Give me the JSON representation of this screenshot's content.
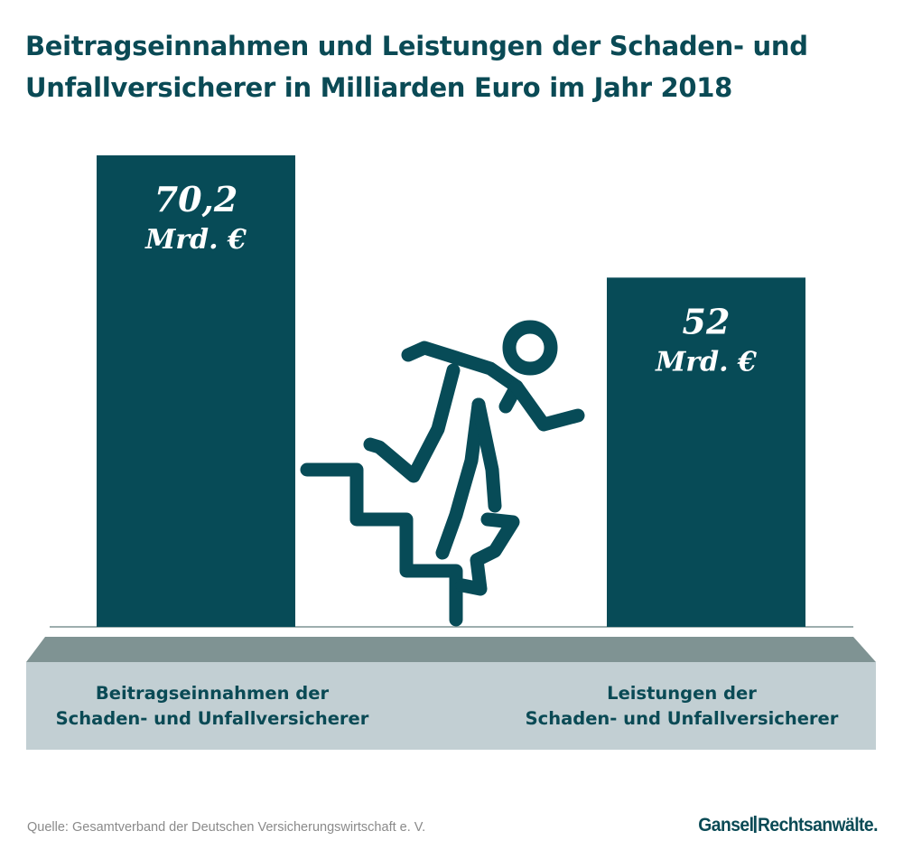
{
  "title_line1": "Beitragseinnahmen und Leistungen der Schaden- und",
  "title_line2": "Unfallversicherer in Milliarden Euro im Jahr 2018",
  "chart_data": {
    "type": "bar",
    "title": "Beitragseinnahmen und Leistungen der Schaden- und Unfallversicherer in Milliarden Euro im Jahr 2018",
    "categories": [
      "Beitragseinnahmen der Schaden- und Unfallversicherer",
      "Leistungen der Schaden- und Unfallversicherer"
    ],
    "values": [
      70.2,
      52
    ],
    "value_labels": [
      "70,2",
      "52"
    ],
    "unit_label": "Mrd. €",
    "ylim": [
      0,
      70.2
    ],
    "grid": false,
    "legend": "none",
    "colors": {
      "bar": "#074b57",
      "base_top": "#7f9393",
      "base_front": "#c2cfd3",
      "text": "#0a4a55",
      "icon": "#074b57"
    }
  },
  "labels": {
    "left_line1": "Beitragseinnahmen der",
    "left_line2": "Schaden- und Unfallversicherer",
    "right_line1": "Leistungen der",
    "right_line2": "Schaden- und Unfallversicherer"
  },
  "icon": "person-falling-down-stairs-icon",
  "source": "Quelle: Gesamtverband der Deutschen Versicherungswirtschaft e. V.",
  "logo": {
    "part1": "Gansel",
    "part2": "Rechtsanwälte."
  }
}
